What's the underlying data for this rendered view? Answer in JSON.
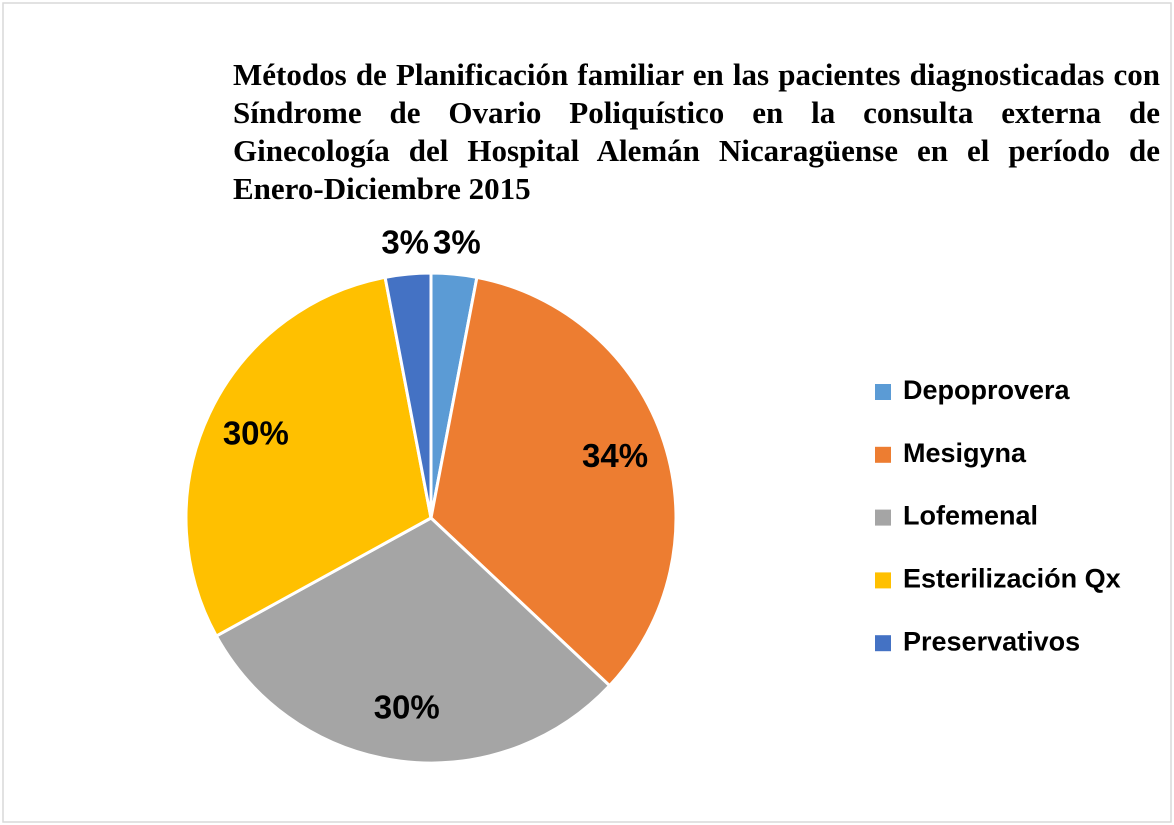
{
  "chart_data": {
    "type": "pie",
    "title": "Métodos de Planificación familiar en las pacientes diagnosticadas con Síndrome de Ovario Poliquístico en la consulta externa de Ginecología del Hospital Alemán Nicaragüense en el período de Enero-Diciembre 2015",
    "categories": [
      "Depoprovera",
      "Mesigyna",
      "Lofemenal",
      "Esterilización Qx",
      "Preservativos"
    ],
    "values": [
      3,
      34,
      30,
      30,
      3
    ],
    "value_labels": [
      "3%",
      "34%",
      "30%",
      "30%",
      "3%"
    ],
    "colors": [
      "#5b9bd5",
      "#ed7d31",
      "#a5a5a5",
      "#ffc000",
      "#4472c4"
    ],
    "legend": "right"
  }
}
